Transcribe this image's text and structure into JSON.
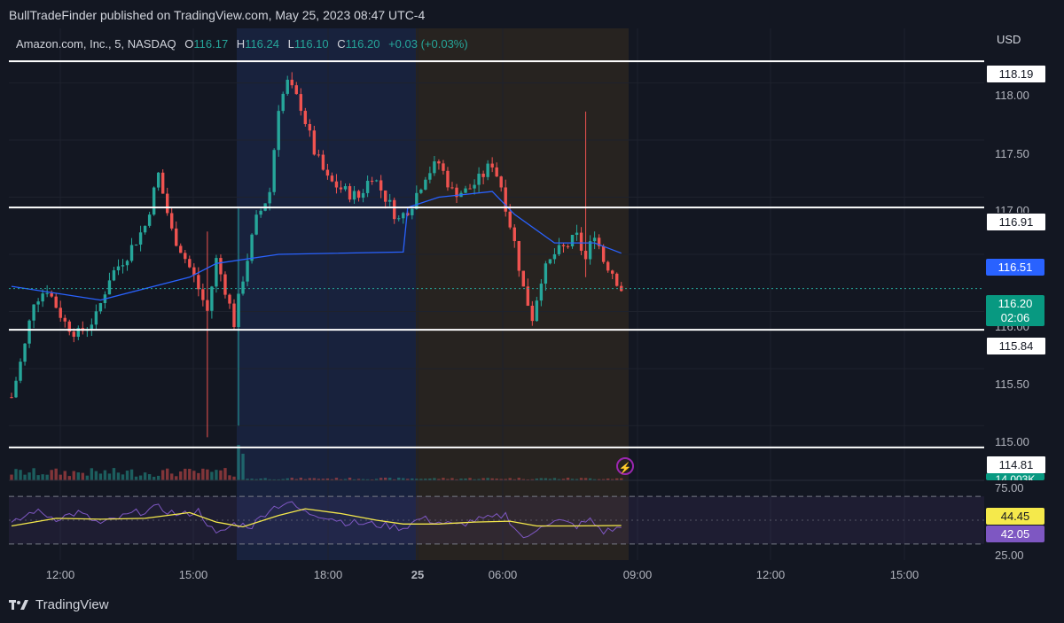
{
  "header": {
    "published_text": "BullTradeFinder published on TradingView.com, May 25, 2023 08:47 UTC-4"
  },
  "legend": {
    "symbol": "Amazon.com, Inc., 5, NASDAQ",
    "o_label": "O",
    "o_value": "116.17",
    "h_label": "H",
    "h_value": "116.24",
    "l_label": "L",
    "l_value": "116.10",
    "c_label": "C",
    "c_value": "116.20",
    "change": "+0.03 (+0.03%)"
  },
  "currency": "USD",
  "price_axis": [
    "118.00",
    "117.50",
    "117.00",
    "116.00",
    "115.50",
    "115.00"
  ],
  "rsi_axis": [
    "75.00",
    "25.00"
  ],
  "time_axis": [
    "12:00",
    "15:00",
    "18:00",
    "25",
    "06:00",
    "09:00",
    "12:00",
    "15:00"
  ],
  "tags": {
    "level_1": "118.19",
    "level_2": "116.91",
    "vwap": "116.51",
    "last_price": "116.20",
    "countdown": "02:06",
    "level_3": "115.84",
    "level_4": "114.81",
    "volume": "14.003K",
    "rsi_ma": "44.45",
    "rsi": "42.05"
  },
  "footer": {
    "brand": "TradingView",
    "logo_icon": "tradingview-logo-icon"
  },
  "icons": {
    "bolt": "lightning-icon"
  },
  "colors": {
    "up": "#26a69a",
    "down": "#ef5350",
    "vwap": "#2962ff",
    "rsi": "#7e57c2",
    "rsi_ma": "#f5e94b",
    "level": "#ffffff"
  },
  "chart_data": {
    "type": "candlestick",
    "title": "Amazon.com, Inc., 5, NASDAQ",
    "ylim": [
      114.6,
      118.4
    ],
    "levels": [
      118.19,
      116.91,
      115.84,
      114.81
    ],
    "last": 116.2,
    "vwap_last": 116.51,
    "rsi_ylim": [
      10,
      90
    ],
    "rsi_bands": [
      75,
      25
    ],
    "rsi_last": 42.05,
    "rsi_ma_last": 44.45,
    "price_path": [
      [
        0,
        115.25
      ],
      [
        3,
        115.7
      ],
      [
        5,
        116.1
      ],
      [
        8,
        116.2
      ],
      [
        12,
        115.9
      ],
      [
        15,
        115.8
      ],
      [
        19,
        115.95
      ],
      [
        22,
        116.3
      ],
      [
        26,
        116.5
      ],
      [
        30,
        116.75
      ],
      [
        33,
        117.2
      ],
      [
        36,
        116.7
      ],
      [
        38,
        116.55
      ],
      [
        41,
        116.3
      ],
      [
        44,
        116.0
      ],
      [
        46,
        116.45
      ],
      [
        48,
        116.2
      ],
      [
        50,
        115.9
      ],
      [
        52,
        116.3
      ],
      [
        55,
        116.8
      ],
      [
        58,
        117.05
      ],
      [
        60,
        117.8
      ],
      [
        62,
        118.0
      ],
      [
        65,
        117.8
      ],
      [
        68,
        117.4
      ],
      [
        71,
        117.15
      ],
      [
        75,
        117.05
      ],
      [
        78,
        117.0
      ],
      [
        81,
        117.2
      ],
      [
        84,
        117.0
      ],
      [
        87,
        116.8
      ],
      [
        90,
        116.95
      ],
      [
        93,
        117.2
      ],
      [
        96,
        117.3
      ],
      [
        99,
        117.05
      ],
      [
        102,
        117.05
      ],
      [
        105,
        117.15
      ],
      [
        108,
        117.3
      ],
      [
        110,
        117.1
      ],
      [
        113,
        116.6
      ],
      [
        115,
        116.2
      ],
      [
        117,
        115.95
      ],
      [
        119,
        116.3
      ],
      [
        122,
        116.5
      ],
      [
        124,
        116.55
      ],
      [
        127,
        116.65
      ],
      [
        129,
        116.45
      ],
      [
        131,
        116.7
      ],
      [
        133,
        116.45
      ],
      [
        135,
        116.35
      ],
      [
        137,
        116.2
      ]
    ],
    "wick_spikes": [
      [
        44,
        114.9,
        116.7
      ],
      [
        51,
        115.0,
        116.9
      ],
      [
        129,
        116.3,
        117.75
      ]
    ],
    "vwap_path": [
      [
        0,
        116.22
      ],
      [
        20,
        116.1
      ],
      [
        40,
        116.3
      ],
      [
        46,
        116.42
      ],
      [
        60,
        116.5
      ],
      [
        88,
        116.52
      ],
      [
        89,
        116.91
      ],
      [
        96,
        117.0
      ],
      [
        108,
        117.05
      ],
      [
        113,
        116.85
      ],
      [
        122,
        116.6
      ],
      [
        131,
        116.6
      ],
      [
        137,
        116.51
      ]
    ],
    "rsi_path": [
      [
        0,
        45
      ],
      [
        5,
        60
      ],
      [
        10,
        52
      ],
      [
        15,
        58
      ],
      [
        20,
        46
      ],
      [
        24,
        52
      ],
      [
        28,
        58
      ],
      [
        33,
        63
      ],
      [
        38,
        55
      ],
      [
        42,
        60
      ],
      [
        46,
        34
      ],
      [
        50,
        46
      ],
      [
        54,
        44
      ],
      [
        58,
        62
      ],
      [
        62,
        69
      ],
      [
        66,
        58
      ],
      [
        70,
        55
      ],
      [
        75,
        48
      ],
      [
        80,
        46
      ],
      [
        85,
        44
      ],
      [
        88,
        42
      ],
      [
        92,
        52
      ],
      [
        96,
        48
      ],
      [
        100,
        44
      ],
      [
        104,
        50
      ],
      [
        108,
        52
      ],
      [
        111,
        56
      ],
      [
        114,
        36
      ],
      [
        116,
        30
      ],
      [
        119,
        46
      ],
      [
        123,
        49
      ],
      [
        127,
        44
      ],
      [
        130,
        50
      ],
      [
        133,
        38
      ],
      [
        137,
        42
      ]
    ],
    "rsi_ma_path": [
      [
        0,
        44
      ],
      [
        10,
        52
      ],
      [
        20,
        51
      ],
      [
        30,
        52
      ],
      [
        40,
        58
      ],
      [
        46,
        48
      ],
      [
        52,
        43
      ],
      [
        60,
        55
      ],
      [
        66,
        62
      ],
      [
        74,
        57
      ],
      [
        82,
        50
      ],
      [
        88,
        46
      ],
      [
        96,
        46
      ],
      [
        104,
        48
      ],
      [
        112,
        49
      ],
      [
        118,
        44
      ],
      [
        126,
        44
      ],
      [
        137,
        44.45
      ]
    ]
  }
}
